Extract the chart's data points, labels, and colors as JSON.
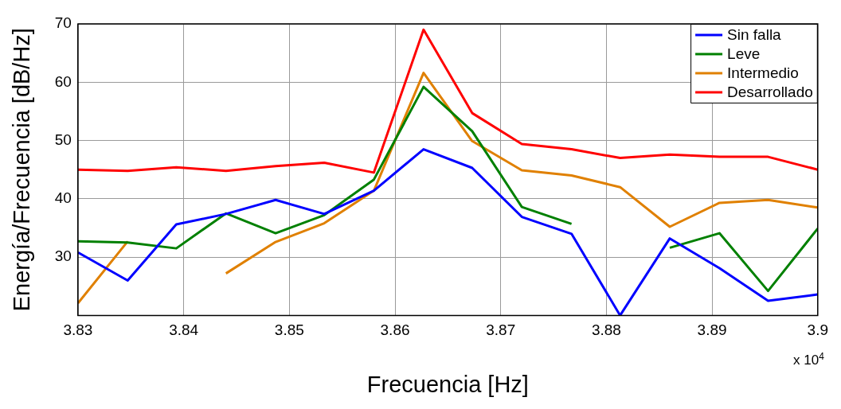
{
  "chart_data": {
    "type": "line",
    "xlabel": "Frecuencia [Hz]",
    "ylabel": "Energía/Frecuencia [dB/Hz]",
    "x": [
      3.83,
      3.8347,
      3.8393,
      3.844,
      3.8487,
      3.8533,
      3.858,
      3.8627,
      3.8673,
      3.872,
      3.8767,
      3.8813,
      3.886,
      3.8907,
      3.8953,
      3.9
    ],
    "series": [
      {
        "name": "Sin falla",
        "color": "#0000ff",
        "values": [
          30.8,
          26.0,
          35.6,
          37.4,
          39.8,
          37.4,
          41.4,
          48.5,
          45.3,
          36.9,
          34.0,
          20,
          33.2,
          28.1,
          22.5,
          23.6
        ]
      },
      {
        "name": "Leve",
        "color": "#008000",
        "values": [
          32.7,
          32.5,
          31.5,
          37.5,
          34.1,
          37.2,
          43.3,
          59.2,
          51.6,
          38.6,
          35.7,
          null,
          31.6,
          34.1,
          24.2,
          34.9
        ]
      },
      {
        "name": "Intermedio",
        "color": "#e08000",
        "values": [
          22.1,
          32.7,
          null,
          27.2,
          32.6,
          35.8,
          41.4,
          61.6,
          49.9,
          44.9,
          44.0,
          42.0,
          35.2,
          39.3,
          39.8,
          38.5
        ]
      },
      {
        "name": "Desarrollado",
        "color": "#ff0000",
        "values": [
          45.0,
          44.8,
          45.4,
          44.8,
          45.6,
          46.2,
          44.5,
          69.0,
          54.7,
          49.4,
          48.5,
          47.0,
          47.6,
          47.2,
          47.2,
          45.0
        ]
      }
    ],
    "xlim": [
      3.83,
      3.9
    ],
    "xticks": [
      3.83,
      3.84,
      3.85,
      3.86,
      3.87,
      3.88,
      3.89,
      3.9
    ],
    "ylim": [
      20,
      70
    ],
    "yticks": [
      30,
      40,
      50,
      60,
      70
    ],
    "annotations": [
      "x 10$^{4}$"
    ],
    "grid": true,
    "legend": "top right",
    "marker": "none",
    "line_style": "solid"
  }
}
